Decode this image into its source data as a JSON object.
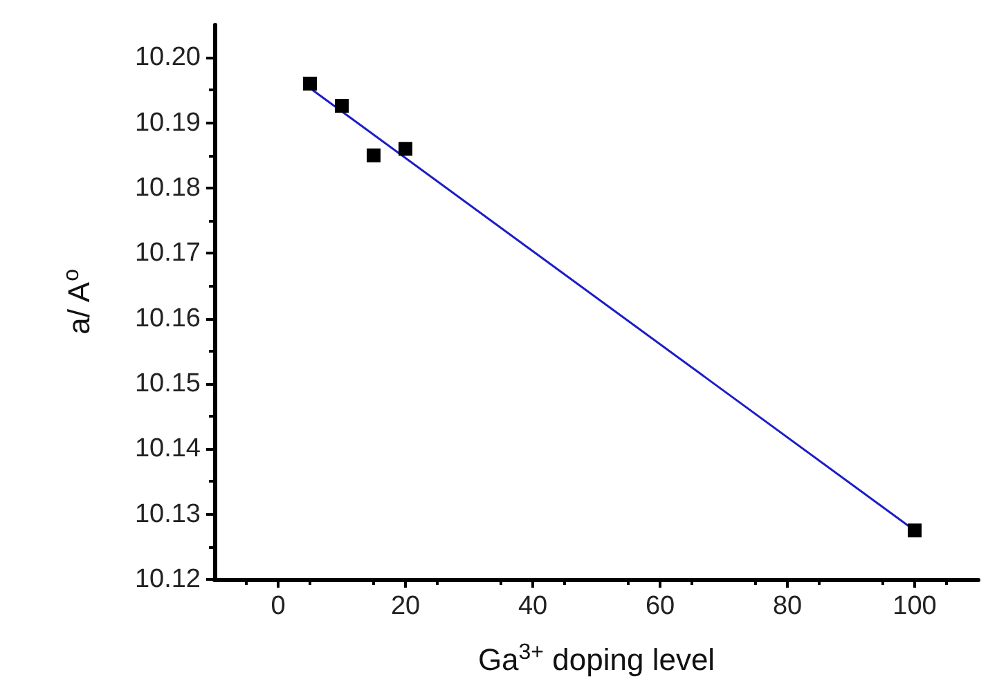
{
  "chart_data": {
    "type": "scatter",
    "xlabel": "Ga$^{3+}$ doping level",
    "ylabel": "a/ A$^{o}$",
    "xlim": [
      -10,
      110
    ],
    "xticks": [
      0,
      20,
      40,
      60,
      80,
      100
    ],
    "ylim": [
      10.12,
      10.205
    ],
    "yticks": [
      10.12,
      10.13,
      10.14,
      10.15,
      10.16,
      10.17,
      10.18,
      10.19,
      {
        "value": 10.2,
        "label": "10.20"
      }
    ],
    "grid": false,
    "marker": "square",
    "series": [
      {
        "color": "#000000",
        "x": [
          5,
          10,
          15,
          20,
          100
        ],
        "values": [
          10.196,
          10.1926,
          10.185,
          10.186,
          10.1275
        ]
      },
      {
        "type": "line",
        "color": "#1c1cc8",
        "marker": "none",
        "line_style": "solid",
        "x": [
          5,
          100
        ],
        "values": [
          10.1953,
          10.1275
        ]
      }
    ]
  }
}
